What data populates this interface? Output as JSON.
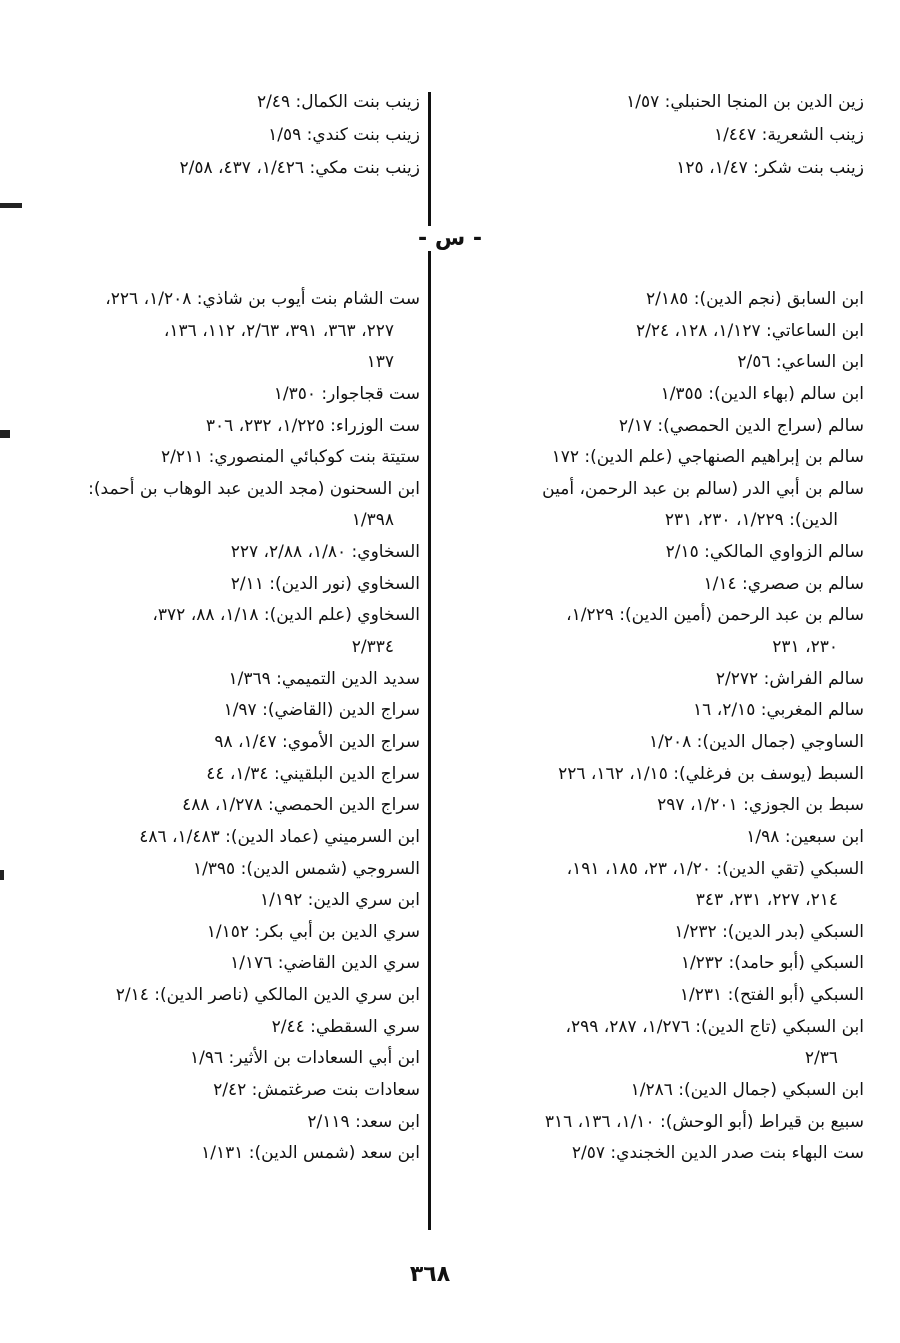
{
  "top": {
    "right": [
      [
        "زين الدين بن المنجا الحنبلي: ١/٥٧"
      ],
      [
        "زينب الشعرية: ١/٤٤٧"
      ],
      [
        "زينب بنت شكر: ١/٤٧، ١٢٥"
      ]
    ],
    "left": [
      [
        "زينب بنت الكمال: ٢/٤٩"
      ],
      [
        "زينب بنت كندي: ١/٥٩"
      ],
      [
        "زينب بنت مكي: ١/٤٢٦، ٤٣٧، ٢/٥٨"
      ]
    ]
  },
  "section_letter": "- س -",
  "main": {
    "right": [
      [
        "ابن السابق (نجم الدين): ٢/١٨٥"
      ],
      [
        "ابن الساعاتي: ١/١٢٧، ١٢٨، ٢/٢٤"
      ],
      [
        "ابن الساعي: ٢/٥٦"
      ],
      [
        "ابن سالم (بهاء الدين): ١/٣٥٥"
      ],
      [
        "سالم (سراج الدين الحمصي): ٢/١٧"
      ],
      [
        "سالم بن إبراهيم الصنهاجي (علم الدين): ١٧٢"
      ],
      [
        "سالم بن أبي الدر (سالم بن عبد الرحمن، أمين",
        "الدين): ١/٢٢٩، ٢٣٠، ٢٣١"
      ],
      [
        "سالم الزواوي المالكي: ٢/١٥"
      ],
      [
        "سالم بن صصري: ١/١٤"
      ],
      [
        "سالم بن عبد الرحمن (أمين الدين): ١/٢٢٩،",
        "٢٣٠، ٢٣١"
      ],
      [
        "سالم الفراش: ٢/٢٧٢"
      ],
      [
        "سالم المغربي: ٢/١٥، ١٦"
      ],
      [
        "الساوجي (جمال الدين): ١/٢٠٨"
      ],
      [
        "السبط (يوسف بن فرغلي): ١/١٥، ١٦٢، ٢٢٦"
      ],
      [
        "سبط بن الجوزي: ١/٢٠١، ٢٩٧"
      ],
      [
        "ابن سبعين: ١/٩٨"
      ],
      [
        "السبكي (تقي الدين): ١/٢٠، ٢٣، ١٨٥، ١٩١،",
        "٢١٤، ٢٢٧، ٢٣١، ٣٤٣"
      ],
      [
        "السبكي (بدر الدين): ١/٢٣٢"
      ],
      [
        "السبكي (أبو حامد): ١/٢٣٢"
      ],
      [
        "السبكي (أبو الفتح): ١/٢٣١"
      ],
      [
        "ابن السبكي (تاج الدين): ١/٢٧٦، ٢٨٧، ٢٩٩،",
        "٢/٣٦"
      ],
      [
        "ابن السبكي (جمال الدين): ١/٢٨٦"
      ],
      [
        "سبيع بن قيراط (أبو الوحش): ١/١٠، ١٣٦، ٣١٦"
      ],
      [
        "ست البهاء بنت صدر الدين الخجندي: ٢/٥٧"
      ]
    ],
    "left": [
      [
        "ست الشام بنت أيوب بن شاذي: ١/٢٠٨، ٢٢٦،",
        "٢٢٧، ٣٦٣، ٣٩١، ٢/٦٣، ١١٢، ١٣٦،",
        "١٣٧"
      ],
      [
        "ست قجاجوار: ١/٣٥٠"
      ],
      [
        "ست الوزراء: ١/٢٢٥، ٢٣٢، ٣٠٦"
      ],
      [
        "ستيتة بنت كوكبائي المنصوري: ٢/٢١١"
      ],
      [
        "ابن السحنون (مجد الدين عبد الوهاب بن أحمد):",
        "١/٣٩٨"
      ],
      [
        "السخاوي: ١/٨٠، ٢/٨٨، ٢٢٧"
      ],
      [
        "السخاوي (نور الدين): ٢/١١"
      ],
      [
        "السخاوي (علم الدين): ١/١٨، ٨٨، ٣٧٢،",
        "٢/٣٣٤"
      ],
      [
        "سديد الدين التميمي: ١/٣٦٩"
      ],
      [
        "سراج الدين (القاضي): ١/٩٧"
      ],
      [
        "سراج الدين الأموي: ١/٤٧، ٩٨"
      ],
      [
        "سراج الدين البلقيني: ١/٣٤، ٤٤"
      ],
      [
        "سراج الدين الحمصي: ١/٢٧٨، ٤٨٨"
      ],
      [
        "ابن السرميني (عماد الدين): ١/٤٨٣، ٤٨٦"
      ],
      [
        "السروجي (شمس الدين): ١/٣٩٥"
      ],
      [
        "ابن سري الدين: ١/١٩٢"
      ],
      [
        "سري الدين بن أبي بكر: ١/١٥٢"
      ],
      [
        "سري الدين القاضي: ١/١٧٦"
      ],
      [
        "ابن سري الدين المالكي (ناصر الدين): ٢/١٤"
      ],
      [
        "سري السقطي: ٢/٤٤"
      ],
      [
        "ابن أبي السعادات بن الأثير: ١/٩٦"
      ],
      [
        "سعادات بنت صرغتمش: ٢/٤٢"
      ],
      [
        "ابن سعد: ٢/١١٩"
      ],
      [
        "ابن سعد (شمس الدين): ١/١٣١"
      ]
    ]
  },
  "page_number": "٣٦٨"
}
